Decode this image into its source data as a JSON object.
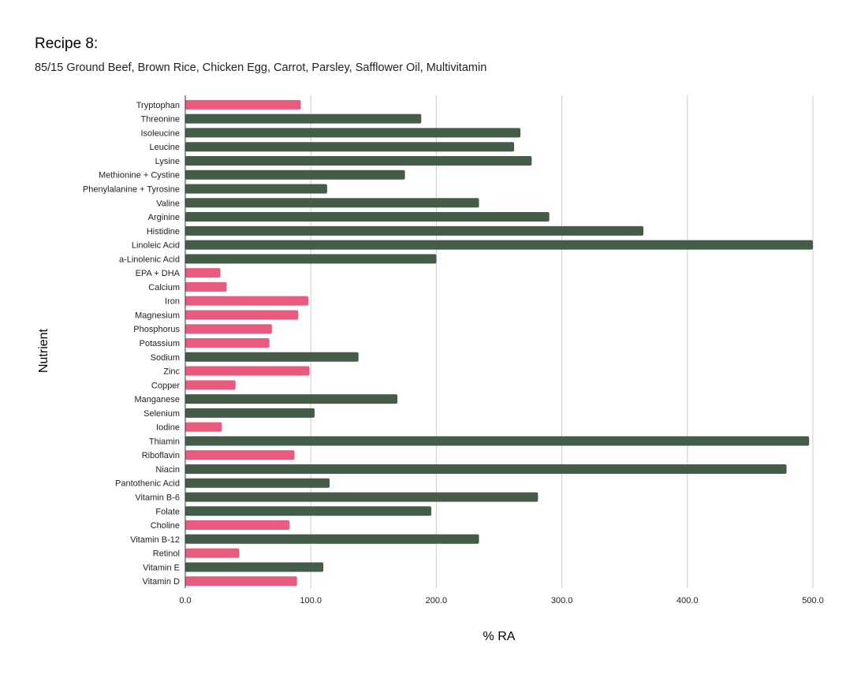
{
  "chart_data": {
    "type": "bar",
    "orientation": "horizontal",
    "title": "Recipe 8:",
    "subtitle": "85/15 Ground Beef, Brown Rice, Chicken Egg, Carrot, Parsley, Safflower Oil, Multivitamin",
    "xlabel": "% RA",
    "ylabel": "Nutrient",
    "xlim": [
      0,
      500
    ],
    "xticks": [
      "0.0",
      "100.0",
      "200.0",
      "300.0",
      "400.0",
      "500.0"
    ],
    "grid": "vertical",
    "legend": "none",
    "colors": {
      "below_100": "#e85a7e",
      "at_or_above_100": "#445c48",
      "grid": "#cccccc",
      "axis": "#333333"
    },
    "categories": [
      "Tryptophan",
      "Threonine",
      "Isoleucine",
      "Leucine",
      "Lysine",
      "Methionine + Cystine",
      "Phenylalanine + Tyrosine",
      "Valine",
      "Arginine",
      "Histidine",
      "Linoleic Acid",
      "a-Linolenic Acid",
      "EPA + DHA",
      "Calcium",
      "Iron",
      "Magnesium",
      "Phosphorus",
      "Potassium",
      "Sodium",
      "Zinc",
      "Copper",
      "Manganese",
      "Selenium",
      "Iodine",
      "Thiamin",
      "Riboflavin",
      "Niacin",
      "Pantothenic Acid",
      "Vitamin B-6",
      "Folate",
      "Choline",
      "Vitamin B-12",
      "Retinol",
      "Vitamin E",
      "Vitamin D"
    ],
    "values": [
      92,
      188,
      267,
      262,
      276,
      175,
      113,
      234,
      290,
      365,
      500,
      200,
      28,
      33,
      98,
      90,
      69,
      67,
      138,
      99,
      40,
      169,
      103,
      29,
      497,
      87,
      479,
      115,
      281,
      196,
      83,
      234,
      43,
      110,
      89
    ]
  }
}
